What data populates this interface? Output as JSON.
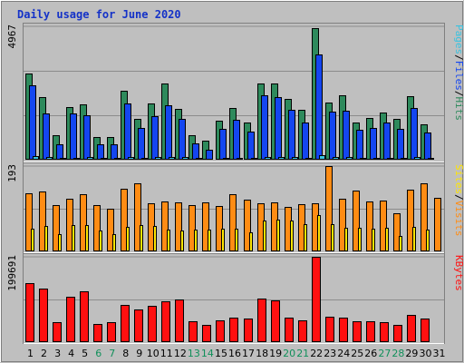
{
  "chart_data": {
    "type": "bar",
    "title": "Daily usage for June 2020",
    "categories": [
      "1",
      "2",
      "3",
      "4",
      "5",
      "6",
      "7",
      "8",
      "9",
      "10",
      "11",
      "12",
      "13",
      "14",
      "15",
      "16",
      "17",
      "18",
      "19",
      "20",
      "21",
      "22",
      "23",
      "24",
      "25",
      "26",
      "27",
      "28",
      "29",
      "30",
      "31"
    ],
    "weekend_days": [
      6,
      7,
      13,
      14,
      20,
      21,
      27,
      28
    ],
    "panels": [
      {
        "max_label": "4967",
        "ylim": [
          0,
          4967
        ],
        "series": [
          {
            "name": "Hits",
            "color": "#2e8a5c",
            "values": [
              3220,
              2330,
              920,
              1960,
              2070,
              830,
              830,
              2570,
              1530,
              2110,
              2830,
              1890,
              920,
              700,
              1460,
              1910,
              1370,
              2840,
              2840,
              2260,
              1860,
              4910,
              2120,
              2400,
              1390,
              1560,
              1770,
              1530,
              2360,
              1320,
              0
            ]
          },
          {
            "name": "Files",
            "color": "#1446f0",
            "values": [
              2780,
              1720,
              590,
              1730,
              1670,
              590,
              590,
              2090,
              1180,
              1630,
              2020,
              1530,
              600,
              380,
              1150,
              1490,
              1040,
              2390,
              2330,
              1850,
              1380,
              3920,
              1790,
              1820,
              1130,
              1190,
              1390,
              1150,
              1910,
              1030,
              0
            ]
          },
          {
            "name": "Pages",
            "color": "#39c3e0",
            "values": [
              130,
              90,
              70,
              80,
              90,
              60,
              60,
              100,
              80,
              90,
              110,
              90,
              60,
              50,
              70,
              80,
              70,
              110,
              100,
              90,
              80,
              170,
              90,
              100,
              70,
              70,
              80,
              70,
              100,
              70,
              0
            ]
          }
        ],
        "legend": [
          "Pages",
          "Files",
          "Hits"
        ]
      },
      {
        "max_label": "193",
        "ylim": [
          0,
          193
        ],
        "series": [
          {
            "name": "Visits",
            "color": "#ff8c14",
            "values": [
              132,
              135,
              104,
              120,
              130,
              104,
              96,
              142,
              153,
              108,
              113,
              111,
              105,
              110,
              102,
              130,
              118,
              109,
              110,
              100,
              107,
              108,
              193,
              119,
              138,
              113,
              114,
              86,
              139,
              153,
              121
            ]
          },
          {
            "name": "Sites",
            "color": "#ffe600",
            "values": [
              52,
              57,
              40,
              59,
              60,
              47,
              40,
              55,
              60,
              58,
              50,
              47,
              50,
              49,
              51,
              52,
              44,
              70,
              71,
              70,
              61,
              83,
              61,
              54,
              54,
              51,
              54,
              34,
              56,
              50,
              0
            ]
          }
        ],
        "legend": [
          "Sites",
          "Visits"
        ]
      },
      {
        "max_label": "199691",
        "ylim": [
          0,
          199691
        ],
        "series": [
          {
            "name": "KBytes",
            "color": "#ff1010",
            "values": [
              138000,
              125000,
              47000,
              107000,
              118000,
              42000,
              47000,
              87000,
              76000,
              85000,
              95000,
              100000,
              48000,
              40000,
              52000,
              58000,
              55000,
              103000,
              98000,
              58000,
              51000,
              199691,
              60000,
              58000,
              48000,
              48000,
              47000,
              41000,
              63000,
              55000,
              0
            ]
          }
        ],
        "legend": [
          "KBytes"
        ]
      }
    ],
    "grid": true,
    "legend_position": "right"
  },
  "colors": {
    "background": "#bfbfbf",
    "frame_light": "#ffffff",
    "frame_dark": "#7f7f7f",
    "title": "#1432c8",
    "label": "#000000",
    "weekend_label": "#10905a",
    "grid": "#8c8c8c"
  }
}
